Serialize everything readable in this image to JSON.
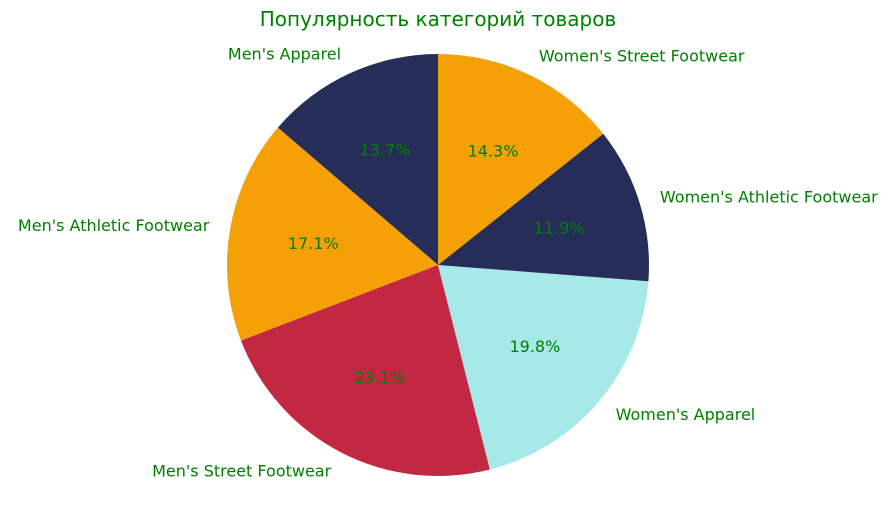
{
  "chart_data": {
    "type": "pie",
    "title": "Популярность категорий товаров",
    "start_angle_deg": 90,
    "direction": "counterclockwise",
    "label_color": "#008000",
    "slices": [
      {
        "label": "Men's Apparel",
        "value": 13.7,
        "pct_label": "13.7%",
        "color": "#262d59"
      },
      {
        "label": "Men's Athletic Footwear",
        "value": 17.1,
        "pct_label": "17.1%",
        "color": "#f6a007"
      },
      {
        "label": "Men's Street Footwear",
        "value": 23.1,
        "pct_label": "23.1%",
        "color": "#c32843"
      },
      {
        "label": "Women's Apparel",
        "value": 19.8,
        "pct_label": "19.8%",
        "color": "#a6e9e8"
      },
      {
        "label": "Women's Athletic Footwear",
        "value": 11.9,
        "pct_label": "11.9%",
        "color": "#262d59"
      },
      {
        "label": "Women's Street Footwear",
        "value": 14.3,
        "pct_label": "14.3%",
        "color": "#f6a007"
      }
    ]
  }
}
